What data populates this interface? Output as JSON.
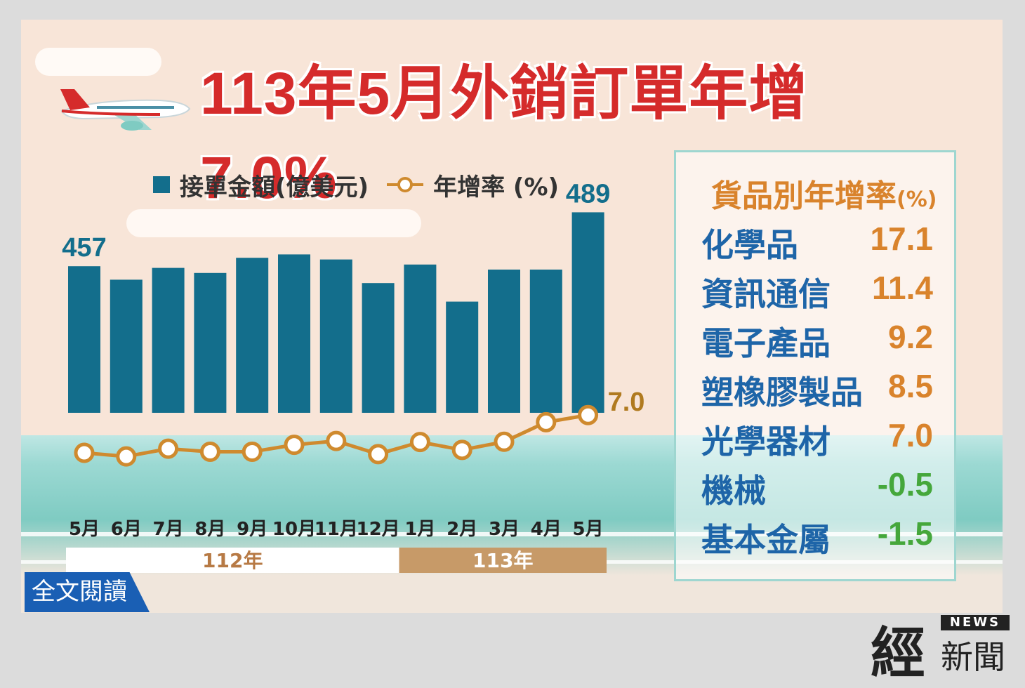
{
  "title": "113年5月外銷訂單年增7.0%",
  "legend": {
    "bar_label": "接單金額(億美元)",
    "line_label": "年增率 (%)"
  },
  "colors": {
    "bar": "#136e8c",
    "line": "#cf8a2e",
    "title": "#d52b2b",
    "goods_name": "#1e65a8",
    "positive": "#d9832c",
    "negative": "#45a73b"
  },
  "chart_data": {
    "type": "bar+line",
    "categories": [
      "5月",
      "6月",
      "7月",
      "8月",
      "9月",
      "10月",
      "11月",
      "12月",
      "1月",
      "2月",
      "3月",
      "4月",
      "5月"
    ],
    "year_groups": [
      {
        "label": "112年",
        "span": 8
      },
      {
        "label": "113年",
        "span": 5
      }
    ],
    "series": [
      {
        "name": "接單金額(億美元)",
        "type": "bar",
        "values": [
          457,
          449,
          456,
          453,
          462,
          464,
          461,
          447,
          458,
          436,
          455,
          455,
          489
        ]
      },
      {
        "name": "年增率 (%)",
        "type": "line",
        "values": [
          -25.2,
          -28.3,
          -21.7,
          -24.3,
          -24.3,
          -18.4,
          -15.1,
          -26.3,
          -16.0,
          -22.7,
          -15.8,
          0.9,
          7.0
        ]
      }
    ],
    "data_labels": [
      {
        "series": 0,
        "index": 0,
        "text": "457"
      },
      {
        "series": 0,
        "index": 12,
        "text": "489"
      },
      {
        "series": 1,
        "index": 12,
        "text": "7.0"
      }
    ]
  },
  "goods": {
    "title": "貨品別年增率",
    "unit": "(%)",
    "items": [
      {
        "name": "化學品",
        "value": "17.1",
        "sign": "pos"
      },
      {
        "name": "資訊通信",
        "value": "11.4",
        "sign": "pos"
      },
      {
        "name": "電子產品",
        "value": "9.2",
        "sign": "pos"
      },
      {
        "name": "塑橡膠製品",
        "value": "8.5",
        "sign": "pos"
      },
      {
        "name": "光學器材",
        "value": "7.0",
        "sign": "pos"
      },
      {
        "name": "機械",
        "value": "-0.5",
        "sign": "neg"
      },
      {
        "name": "基本金屬",
        "value": "-1.5",
        "sign": "neg"
      }
    ]
  },
  "read_button": "全文閱讀",
  "logo": {
    "big": "經",
    "news": "NEWS",
    "sub": "新聞"
  }
}
